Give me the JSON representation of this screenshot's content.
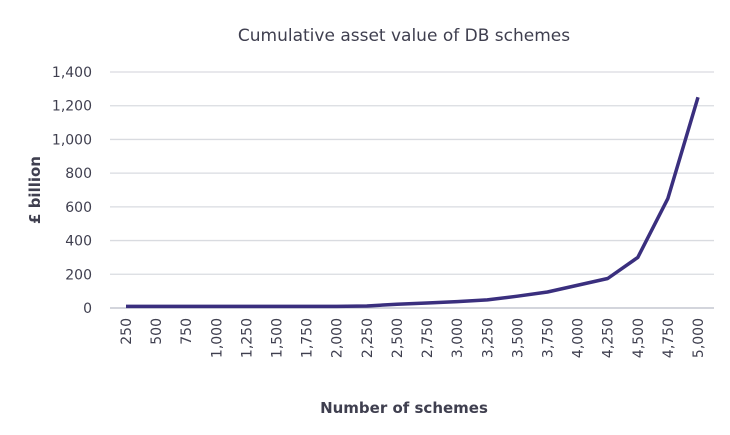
{
  "chart_data": {
    "type": "line",
    "title": "Cumulative asset value of DB schemes",
    "xlabel": "Number of schemes",
    "ylabel": "£ billion",
    "ylim": [
      0,
      1400
    ],
    "yticks": [
      0,
      200,
      400,
      600,
      800,
      1000,
      1200,
      1400
    ],
    "ytick_labels": [
      "0",
      "200",
      "400",
      "600",
      "800",
      "1,000",
      "1,200",
      "1,400"
    ],
    "categories": [
      "250",
      "500",
      "750",
      "1,000",
      "1,250",
      "1,500",
      "1,750",
      "2,000",
      "2,250",
      "2,500",
      "2,750",
      "3,000",
      "3,250",
      "3,500",
      "3,750",
      "4,000",
      "4,250",
      "4,500",
      "4,750",
      "5,000"
    ],
    "series": [
      {
        "name": "Cumulative asset value",
        "color": "#3a2f7e",
        "values": [
          10,
          10,
          10,
          10,
          10,
          10,
          10,
          10,
          12,
          22,
          30,
          38,
          48,
          70,
          95,
          135,
          175,
          300,
          650,
          1250
        ]
      }
    ],
    "grid": true
  }
}
